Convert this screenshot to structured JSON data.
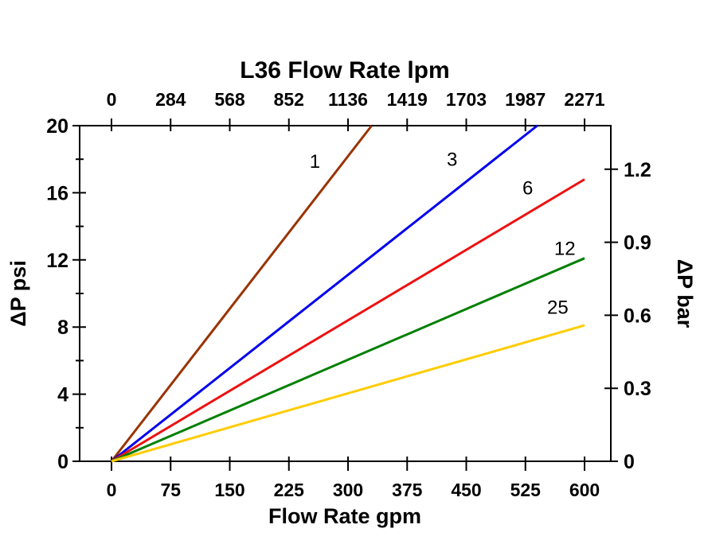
{
  "chart_data": {
    "type": "line",
    "title": "L36  Flow Rate lpm",
    "top_axis": {
      "ticks": [
        "0",
        "284",
        "568",
        "852",
        "1136",
        "1419",
        "1703",
        "1987",
        "2271"
      ]
    },
    "bottom_axis": {
      "label": "Flow Rate gpm",
      "ticks": [
        0,
        75,
        150,
        225,
        300,
        375,
        450,
        525,
        600
      ]
    },
    "left_axis": {
      "label": "ΔP psi",
      "ticks": [
        0,
        4,
        8,
        12,
        16,
        20
      ],
      "minor_ticks": [
        2,
        6,
        10,
        14,
        18
      ],
      "range": [
        0,
        20
      ]
    },
    "right_axis": {
      "label": "ΔP bar",
      "ticks": [
        0,
        0.3,
        0.6,
        0.9,
        1.2
      ],
      "psi_per_bar": 14.5038
    },
    "x_range": [
      0,
      600
    ],
    "grid": false,
    "legend": "inline-labels",
    "series": [
      {
        "name": "1",
        "color": "#993300",
        "points": [
          [
            0,
            0
          ],
          [
            330,
            20
          ]
        ],
        "label_at": {
          "x": 258,
          "y": 17.5
        }
      },
      {
        "name": "3",
        "color": "#0000EE",
        "points": [
          [
            0,
            0
          ],
          [
            540,
            20
          ]
        ],
        "label_at": {
          "x": 432,
          "y": 17.6
        }
      },
      {
        "name": "6",
        "color": "#EE1111",
        "points": [
          [
            0,
            0
          ],
          [
            600,
            16.8
          ]
        ],
        "label_at": {
          "x": 528,
          "y": 15.9
        }
      },
      {
        "name": "12",
        "color": "#008000",
        "points": [
          [
            0,
            0
          ],
          [
            600,
            12.1
          ]
        ],
        "label_at": {
          "x": 575,
          "y": 12.3
        }
      },
      {
        "name": "25",
        "color": "#FFCC00",
        "points": [
          [
            0,
            0
          ],
          [
            600,
            8.1
          ]
        ],
        "label_at": {
          "x": 566,
          "y": 8.8
        }
      }
    ]
  }
}
